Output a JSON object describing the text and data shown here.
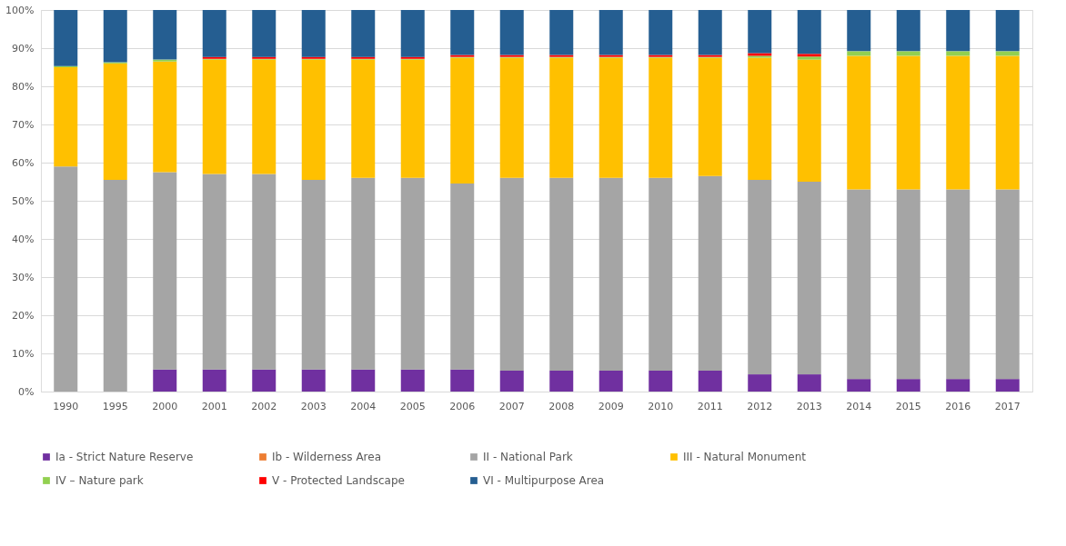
{
  "chart_data": {
    "type": "bar",
    "stacked": true,
    "categories": [
      "1990",
      "1995",
      "2000",
      "2001",
      "2002",
      "2003",
      "2004",
      "2005",
      "2006",
      "2007",
      "2008",
      "2009",
      "2010",
      "2011",
      "2012",
      "2013",
      "2014",
      "2015",
      "2016",
      "2017"
    ],
    "series": [
      {
        "name": "Ia - Strict Nature Reserve",
        "color": "#7030a0",
        "values": [
          0,
          0,
          5.8,
          5.8,
          5.8,
          5.8,
          5.8,
          5.8,
          5.8,
          5.5,
          5.5,
          5.5,
          5.5,
          5.5,
          4.5,
          4.5,
          3.3,
          3.3,
          3.3,
          3.3
        ]
      },
      {
        "name": "Ib - Wilderness Area",
        "color": "#ed7d31",
        "values": [
          0,
          0,
          0,
          0,
          0,
          0,
          0,
          0,
          0,
          0,
          0,
          0,
          0,
          0,
          0,
          0,
          0,
          0,
          0,
          0
        ]
      },
      {
        "name": "II - National Park",
        "color": "#a5a5a5",
        "values": [
          59,
          55.5,
          51.7,
          51.2,
          51.2,
          49.7,
          50.2,
          50.2,
          48.7,
          50.5,
          50.5,
          50.5,
          50.5,
          51,
          51,
          50.5,
          49.7,
          49.7,
          49.7,
          49.7
        ]
      },
      {
        "name": "III - Natural Monument",
        "color": "#ffc000",
        "values": [
          26,
          30.5,
          29,
          30,
          30,
          31.5,
          31,
          31,
          33,
          31.5,
          31.5,
          31.5,
          31.5,
          31,
          32,
          32,
          35,
          35,
          35,
          35
        ]
      },
      {
        "name": "IV – Nature park",
        "color": "#92d050",
        "values": [
          0.3,
          0.3,
          0.5,
          0.2,
          0.2,
          0.2,
          0.2,
          0.2,
          0.2,
          0.2,
          0.2,
          0.2,
          0.2,
          0.2,
          0.5,
          0.8,
          1.2,
          1.2,
          1.2,
          1.2
        ]
      },
      {
        "name": "V - Protected Landscape",
        "color": "#ff0000",
        "values": [
          0,
          0,
          0,
          0.5,
          0.5,
          0.5,
          0.5,
          0.5,
          0.5,
          0.5,
          0.5,
          0.5,
          0.5,
          0.5,
          0.7,
          0.7,
          0,
          0,
          0,
          0
        ]
      },
      {
        "name": "VI - Multipurpose Area",
        "color": "#255e91",
        "values": [
          14.7,
          13.7,
          13,
          12.3,
          12.3,
          12.3,
          12.3,
          12.3,
          11.8,
          11.8,
          11.8,
          11.8,
          11.8,
          11.8,
          11.3,
          11.5,
          10.8,
          10.8,
          10.8,
          10.8
        ]
      }
    ],
    "ylim": [
      0,
      100
    ],
    "yticks": [
      {
        "value": 0,
        "label": "0%"
      },
      {
        "value": 10,
        "label": "10%"
      },
      {
        "value": 20,
        "label": "20%"
      },
      {
        "value": 30,
        "label": "30%"
      },
      {
        "value": 40,
        "label": "40%"
      },
      {
        "value": 50,
        "label": "50%"
      },
      {
        "value": 60,
        "label": "60%"
      },
      {
        "value": 70,
        "label": "70%"
      },
      {
        "value": 80,
        "label": "80%"
      },
      {
        "value": 90,
        "label": "90%"
      },
      {
        "value": 100,
        "label": "100%"
      }
    ],
    "grid": "y",
    "legend": "bottom"
  }
}
